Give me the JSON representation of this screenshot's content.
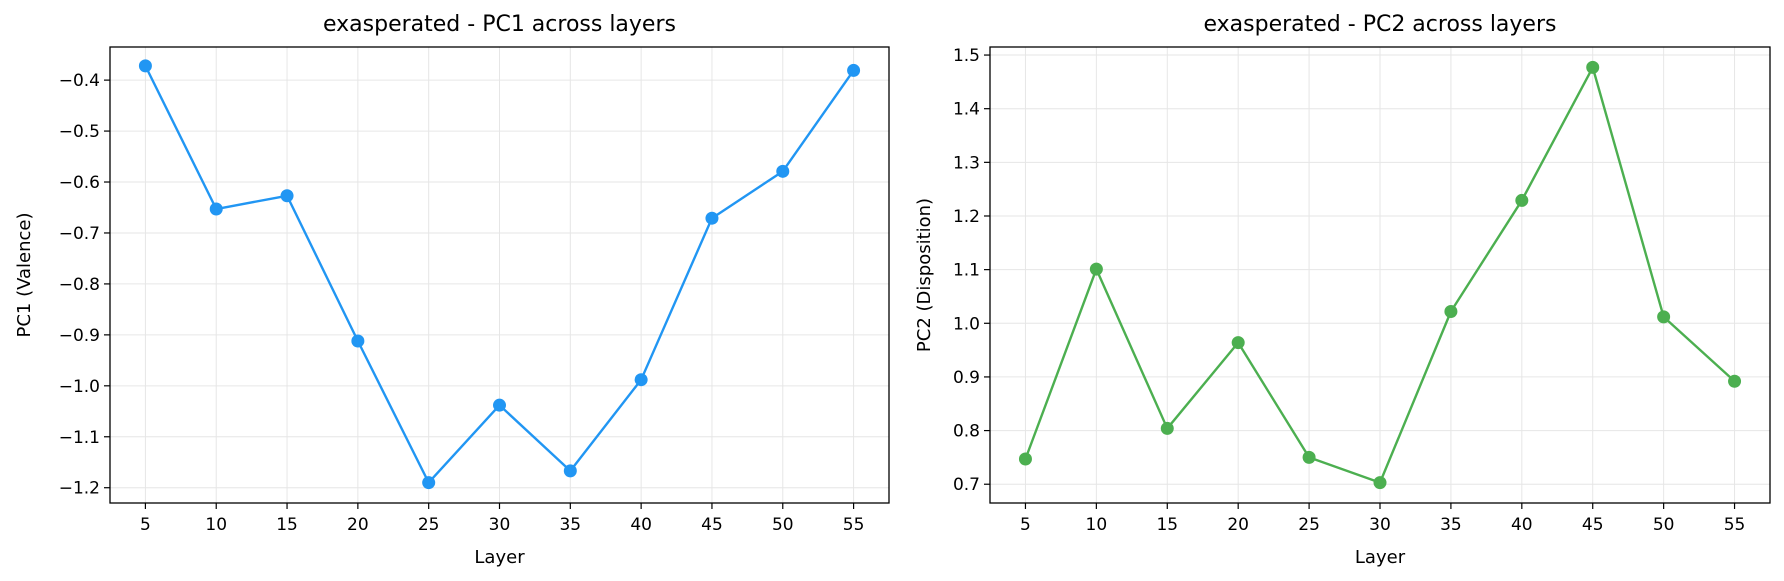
{
  "chart_data": [
    {
      "type": "line",
      "title": "exasperated - PC1 across layers",
      "xlabel": "Layer",
      "ylabel": "PC1 (Valence)",
      "x": [
        5,
        10,
        15,
        20,
        25,
        30,
        35,
        40,
        45,
        50,
        55
      ],
      "xticks": [
        5,
        10,
        15,
        20,
        25,
        30,
        35,
        40,
        45,
        50,
        55
      ],
      "xlim": [
        2.5,
        57.5
      ],
      "yticks": [
        "−0.4",
        "−0.5",
        "−0.6",
        "−0.7",
        "−0.8",
        "−0.9",
        "−1.0",
        "−1.1",
        "−1.2"
      ],
      "ytick_values": [
        -0.4,
        -0.5,
        -0.6,
        -0.7,
        -0.8,
        -0.9,
        -1.0,
        -1.1,
        -1.2
      ],
      "ylim": [
        -1.23,
        -0.335
      ],
      "grid": true,
      "series": [
        {
          "color": "#2196F3",
          "values": [
            -0.372,
            -0.653,
            -0.627,
            -0.912,
            -1.19,
            -1.038,
            -1.167,
            -0.988,
            -0.671,
            -0.579,
            -0.381
          ]
        }
      ]
    },
    {
      "type": "line",
      "title": "exasperated - PC2 across layers",
      "xlabel": "Layer",
      "ylabel": "PC2 (Disposition)",
      "x": [
        5,
        10,
        15,
        20,
        25,
        30,
        35,
        40,
        45,
        50,
        55
      ],
      "xticks": [
        5,
        10,
        15,
        20,
        25,
        30,
        35,
        40,
        45,
        50,
        55
      ],
      "xlim": [
        2.5,
        57.5
      ],
      "yticks": [
        "0.7",
        "0.8",
        "0.9",
        "1.0",
        "1.1",
        "1.2",
        "1.3",
        "1.4",
        "1.5"
      ],
      "ytick_values": [
        0.7,
        0.8,
        0.9,
        1.0,
        1.1,
        1.2,
        1.3,
        1.4,
        1.5
      ],
      "ylim": [
        0.665,
        1.515
      ],
      "grid": true,
      "series": [
        {
          "color": "#4CAF50",
          "values": [
            0.747,
            1.101,
            0.804,
            0.964,
            0.75,
            0.703,
            1.022,
            1.229,
            1.477,
            1.012,
            0.892
          ]
        }
      ]
    }
  ]
}
